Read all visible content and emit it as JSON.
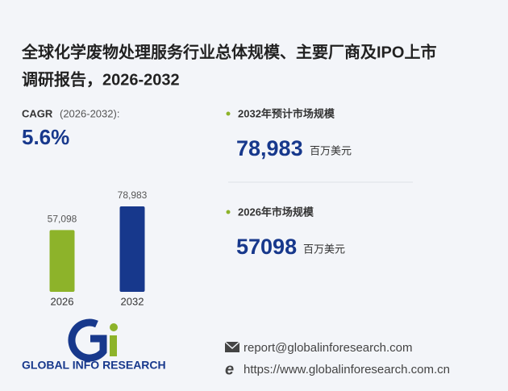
{
  "header": {
    "title_line1": "全球化学废物处理服务行业总体规模、主要厂商及IPO上市",
    "title_line2": "调研报告，2026-2032"
  },
  "cagr": {
    "label": "CAGR",
    "period": "(2026-2032):",
    "value": "5.6%"
  },
  "chart_data": {
    "type": "bar",
    "categories": [
      "2026",
      "2032"
    ],
    "values": [
      57098,
      78983
    ],
    "value_labels": [
      "57,098",
      "78,983"
    ],
    "colors": [
      "#8db32a",
      "#17388c"
    ]
  },
  "stats": [
    {
      "label": "2032年预计市场规模",
      "value": "78,983",
      "unit": "百万美元"
    },
    {
      "label": "2026年市场规模",
      "value": "57098",
      "unit": "百万美元"
    }
  ],
  "footer": {
    "brand": "GLOBAL INFO RESEARCH",
    "email": "report@globalinforesearch.com",
    "website": "https://www.globalinforesearch.com.cn"
  }
}
